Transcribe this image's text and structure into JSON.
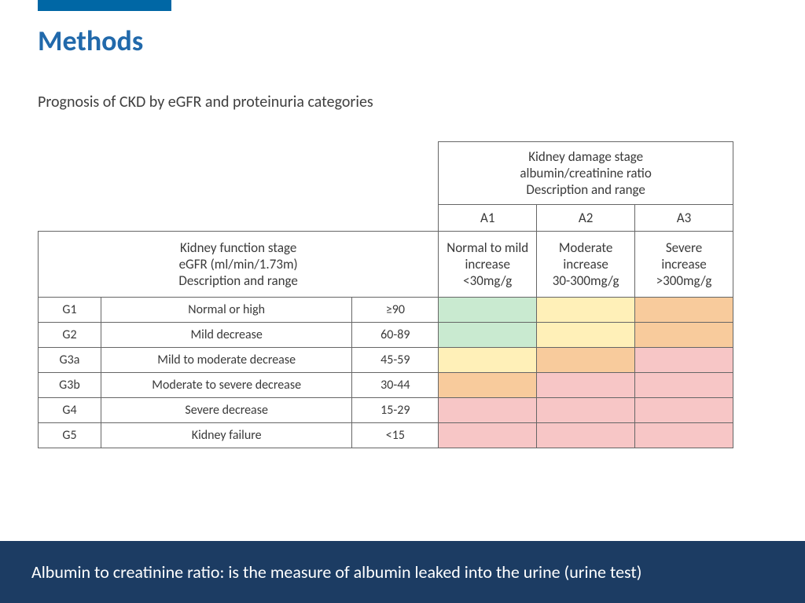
{
  "colors": {
    "accent_bar": "#0067a5",
    "title": "#2169ab",
    "subtitle": "#3f3f3f",
    "cell_text": "#3a3a3a",
    "border": "#666666",
    "footer_bg": "#1c3c63",
    "footer_text": "#ffffff",
    "risk_green": "#c9ead0",
    "risk_yellow": "#fff0b8",
    "risk_orange": "#f8cb9c",
    "risk_red": "#f7c6c6"
  },
  "typography": {
    "title_size": 36,
    "subtitle_size": 20,
    "table_header_size": 17,
    "table_cell_size": 16,
    "footer_size": 22
  },
  "title": "Methods",
  "subtitle": "Prognosis of CKD by eGFR and proteinuria categories",
  "table": {
    "col_header_title_lines": [
      "Kidney damage stage",
      "albumin/creatinine ratio",
      "Description and range"
    ],
    "row_header_title_lines": [
      "Kidney function stage",
      "eGFR (ml/min/1.73m)",
      "Description and range"
    ],
    "a_codes": [
      "A1",
      "A2",
      "A3"
    ],
    "a_desc": [
      [
        "Normal to mild",
        "increase",
        "<30mg/g"
      ],
      [
        "Moderate",
        "increase",
        "30-300mg/g"
      ],
      [
        "Severe",
        "increase",
        ">300mg/g"
      ]
    ],
    "rows": [
      {
        "code": "G1",
        "desc": "Normal or high",
        "range": "≥90",
        "risk": [
          "green",
          "yellow",
          "orange"
        ]
      },
      {
        "code": "G2",
        "desc": "Mild decrease",
        "range": "60-89",
        "risk": [
          "green",
          "yellow",
          "orange"
        ]
      },
      {
        "code": "G3a",
        "desc": "Mild to moderate decrease",
        "range": "45-59",
        "risk": [
          "yellow",
          "orange",
          "red"
        ]
      },
      {
        "code": "G3b",
        "desc": "Moderate to severe decrease",
        "range": "30-44",
        "risk": [
          "orange",
          "red",
          "red"
        ]
      },
      {
        "code": "G4",
        "desc": "Severe decrease",
        "range": "15-29",
        "risk": [
          "red",
          "red",
          "red"
        ]
      },
      {
        "code": "G5",
        "desc": "Kidney failure",
        "range": "<15",
        "risk": [
          "red",
          "red",
          "red"
        ]
      }
    ],
    "risk_color_map": {
      "green": "risk_green",
      "yellow": "risk_yellow",
      "orange": "risk_orange",
      "red": "risk_red"
    }
  },
  "footer": "Albumin to creatinine ratio: is the measure of albumin leaked into the urine (urine test)"
}
